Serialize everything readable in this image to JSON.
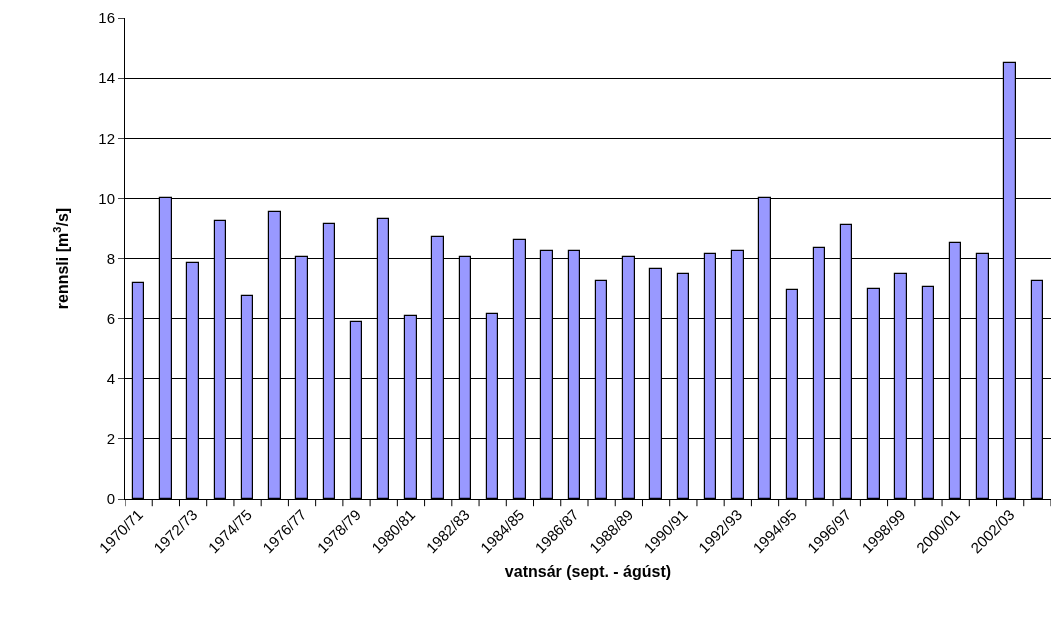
{
  "chart_data": {
    "type": "bar",
    "xlabel": "vatnsár (sept. - ágúst)",
    "ylabel": "rennsli [m$^{3}$/s]",
    "categories": [
      "1970/71",
      null,
      "1972/73",
      null,
      "1974/75",
      null,
      "1976/77",
      null,
      "1978/79",
      null,
      "1980/81",
      null,
      "1982/83",
      null,
      "1984/85",
      null,
      "1986/87",
      null,
      "1988/89",
      null,
      "1990/91",
      null,
      "1992/93",
      null,
      "1994/95",
      null,
      "1996/97",
      null,
      "1998/99",
      null,
      "2000/01",
      null,
      "2002/03",
      null
    ],
    "values": [
      7.2,
      10.0,
      7.85,
      9.25,
      6.75,
      9.55,
      8.05,
      9.15,
      5.9,
      9.3,
      6.1,
      8.7,
      8.05,
      6.15,
      8.6,
      8.25,
      8.25,
      7.25,
      8.05,
      7.65,
      7.5,
      8.15,
      8.25,
      10.0,
      6.95,
      8.35,
      9.1,
      7.0,
      7.5,
      7.05,
      8.5,
      8.15,
      14.5,
      7.25
    ],
    "color": "#9999ff",
    "ylim": [
      0,
      16
    ],
    "yticks": [
      0,
      2,
      4,
      6,
      8,
      10,
      12,
      14,
      16
    ],
    "grid": "y"
  }
}
